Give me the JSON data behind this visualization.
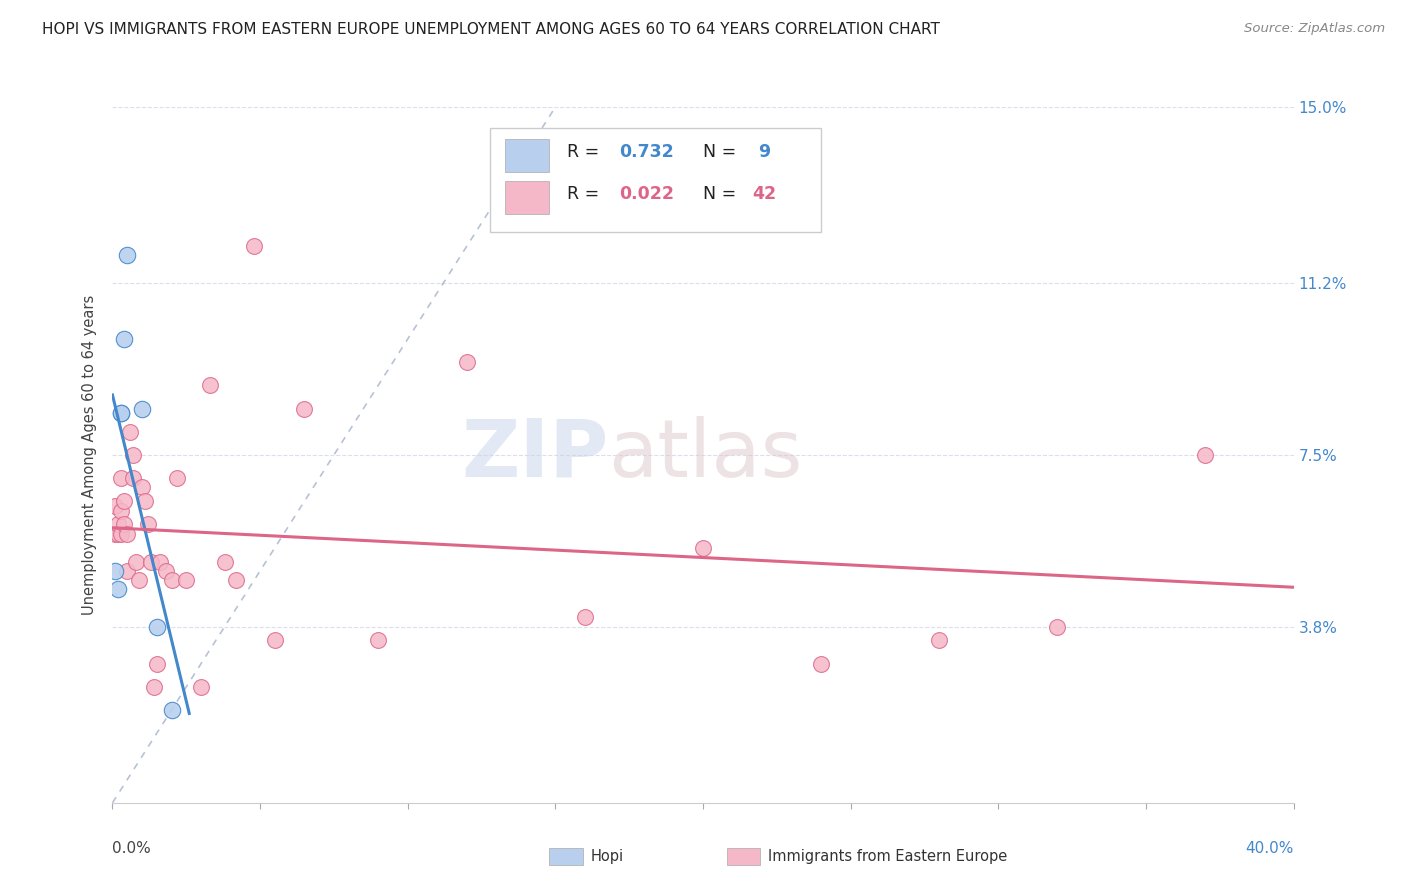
{
  "title": "HOPI VS IMMIGRANTS FROM EASTERN EUROPE UNEMPLOYMENT AMONG AGES 60 TO 64 YEARS CORRELATION CHART",
  "source": "Source: ZipAtlas.com",
  "ylabel": "Unemployment Among Ages 60 to 64 years",
  "right_yticks": [
    0.0,
    0.038,
    0.075,
    0.112,
    0.15
  ],
  "right_yticklabels": [
    "",
    "3.8%",
    "7.5%",
    "11.2%",
    "15.0%"
  ],
  "hopi_R": 0.732,
  "hopi_N": 9,
  "eastern_R": 0.022,
  "eastern_N": 42,
  "hopi_color": "#b8d0ee",
  "eastern_color": "#f5b8c8",
  "hopi_line_color": "#4488cc",
  "eastern_line_color": "#dd6688",
  "diagonal_color": "#8899bb",
  "background_color": "#ffffff",
  "grid_color": "#ddddee",
  "hopi_x": [
    0.001,
    0.002,
    0.003,
    0.003,
    0.004,
    0.005,
    0.01,
    0.015,
    0.02
  ],
  "hopi_y": [
    0.05,
    0.046,
    0.084,
    0.084,
    0.1,
    0.118,
    0.085,
    0.038,
    0.02
  ],
  "eastern_x": [
    0.001,
    0.001,
    0.002,
    0.002,
    0.003,
    0.003,
    0.003,
    0.004,
    0.004,
    0.005,
    0.005,
    0.006,
    0.007,
    0.007,
    0.008,
    0.009,
    0.01,
    0.011,
    0.012,
    0.013,
    0.014,
    0.015,
    0.016,
    0.018,
    0.02,
    0.022,
    0.025,
    0.03,
    0.033,
    0.038,
    0.042,
    0.048,
    0.055,
    0.065,
    0.09,
    0.12,
    0.16,
    0.2,
    0.24,
    0.28,
    0.32,
    0.37
  ],
  "eastern_y": [
    0.058,
    0.064,
    0.058,
    0.06,
    0.058,
    0.063,
    0.07,
    0.06,
    0.065,
    0.058,
    0.05,
    0.08,
    0.07,
    0.075,
    0.052,
    0.048,
    0.068,
    0.065,
    0.06,
    0.052,
    0.025,
    0.03,
    0.052,
    0.05,
    0.048,
    0.07,
    0.048,
    0.025,
    0.09,
    0.052,
    0.048,
    0.12,
    0.035,
    0.085,
    0.035,
    0.095,
    0.04,
    0.055,
    0.03,
    0.035,
    0.038,
    0.075
  ],
  "xlim": [
    0.0,
    0.4
  ],
  "ylim": [
    0.0,
    0.15
  ],
  "legend_labels": [
    "Hopi",
    "Immigrants from Eastern Europe"
  ]
}
